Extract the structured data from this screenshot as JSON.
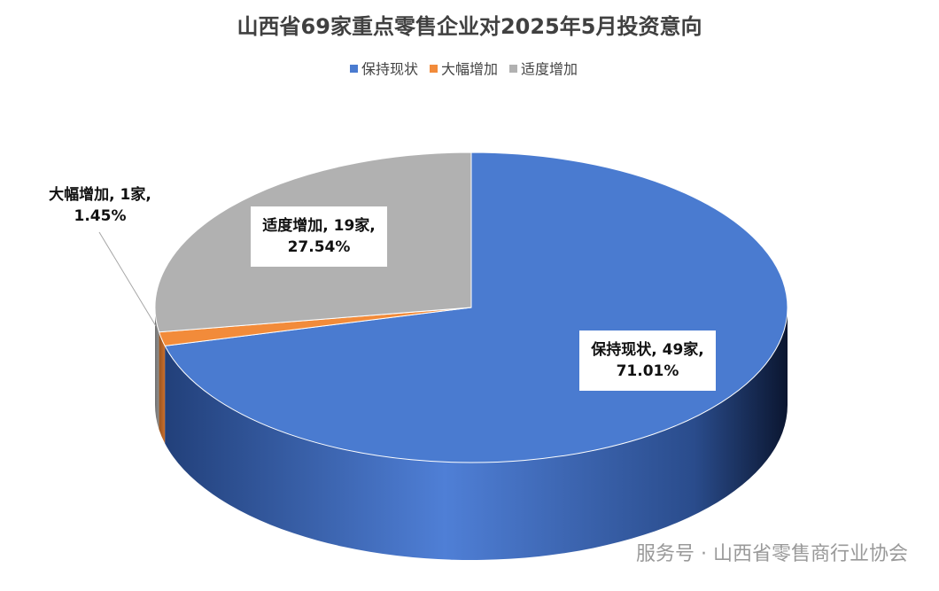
{
  "chart_data": {
    "type": "pie3d",
    "title": "山西省69家重点零售企业对2025年5月投资意向",
    "categories": [
      "保持现状",
      "大幅增加",
      "适度增加"
    ],
    "values": [
      49,
      1,
      19
    ],
    "value_labels": [
      [
        "保持现状, 49家,",
        "71.01%"
      ],
      [
        "大幅增加, 1家,",
        "1.45%"
      ],
      [
        "适度增加, 19家,",
        "27.54%"
      ]
    ],
    "colors": [
      "#4a7bd0",
      "#f28b3a",
      "#b1b1b1"
    ],
    "legend": "top",
    "watermark": "服务号 · 山西省零售商行业协会"
  }
}
